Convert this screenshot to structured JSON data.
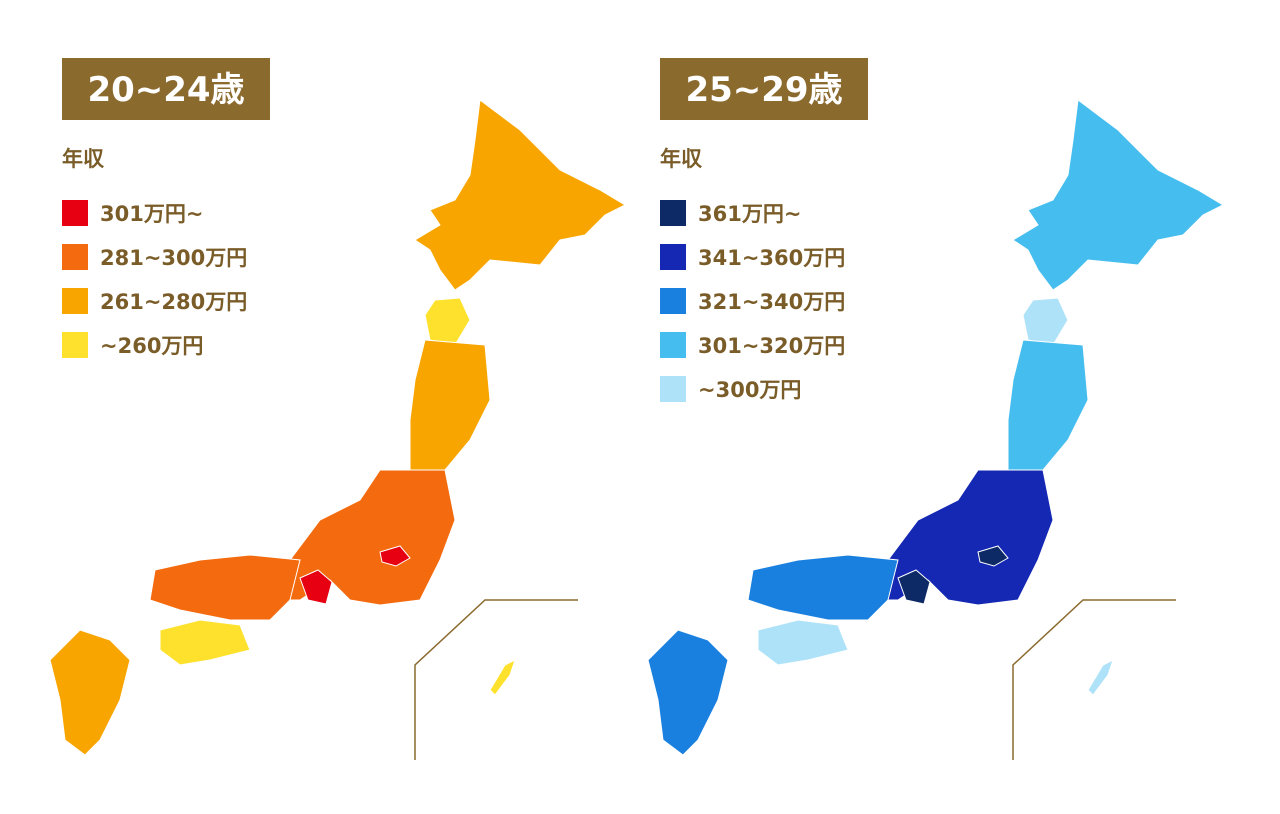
{
  "maps": [
    {
      "title": "20~24歳",
      "legend_title": "年収",
      "legend": [
        {
          "label": "301万円~",
          "color": "#e60012"
        },
        {
          "label": "281~300万円",
          "color": "#f46a0e"
        },
        {
          "label": "261~280万円",
          "color": "#f8a500"
        },
        {
          "label": "~260万円",
          "color": "#fde12d"
        }
      ]
    },
    {
      "title": "25~29歳",
      "legend_title": "年収",
      "legend": [
        {
          "label": "361万円~",
          "color": "#0d2a66"
        },
        {
          "label": "341~360万円",
          "color": "#1428b4"
        },
        {
          "label": "321~340万円",
          "color": "#1a80e0"
        },
        {
          "label": "301~320万円",
          "color": "#45bdee"
        },
        {
          "label": "~300万円",
          "color": "#aee2f8"
        }
      ]
    }
  ]
}
